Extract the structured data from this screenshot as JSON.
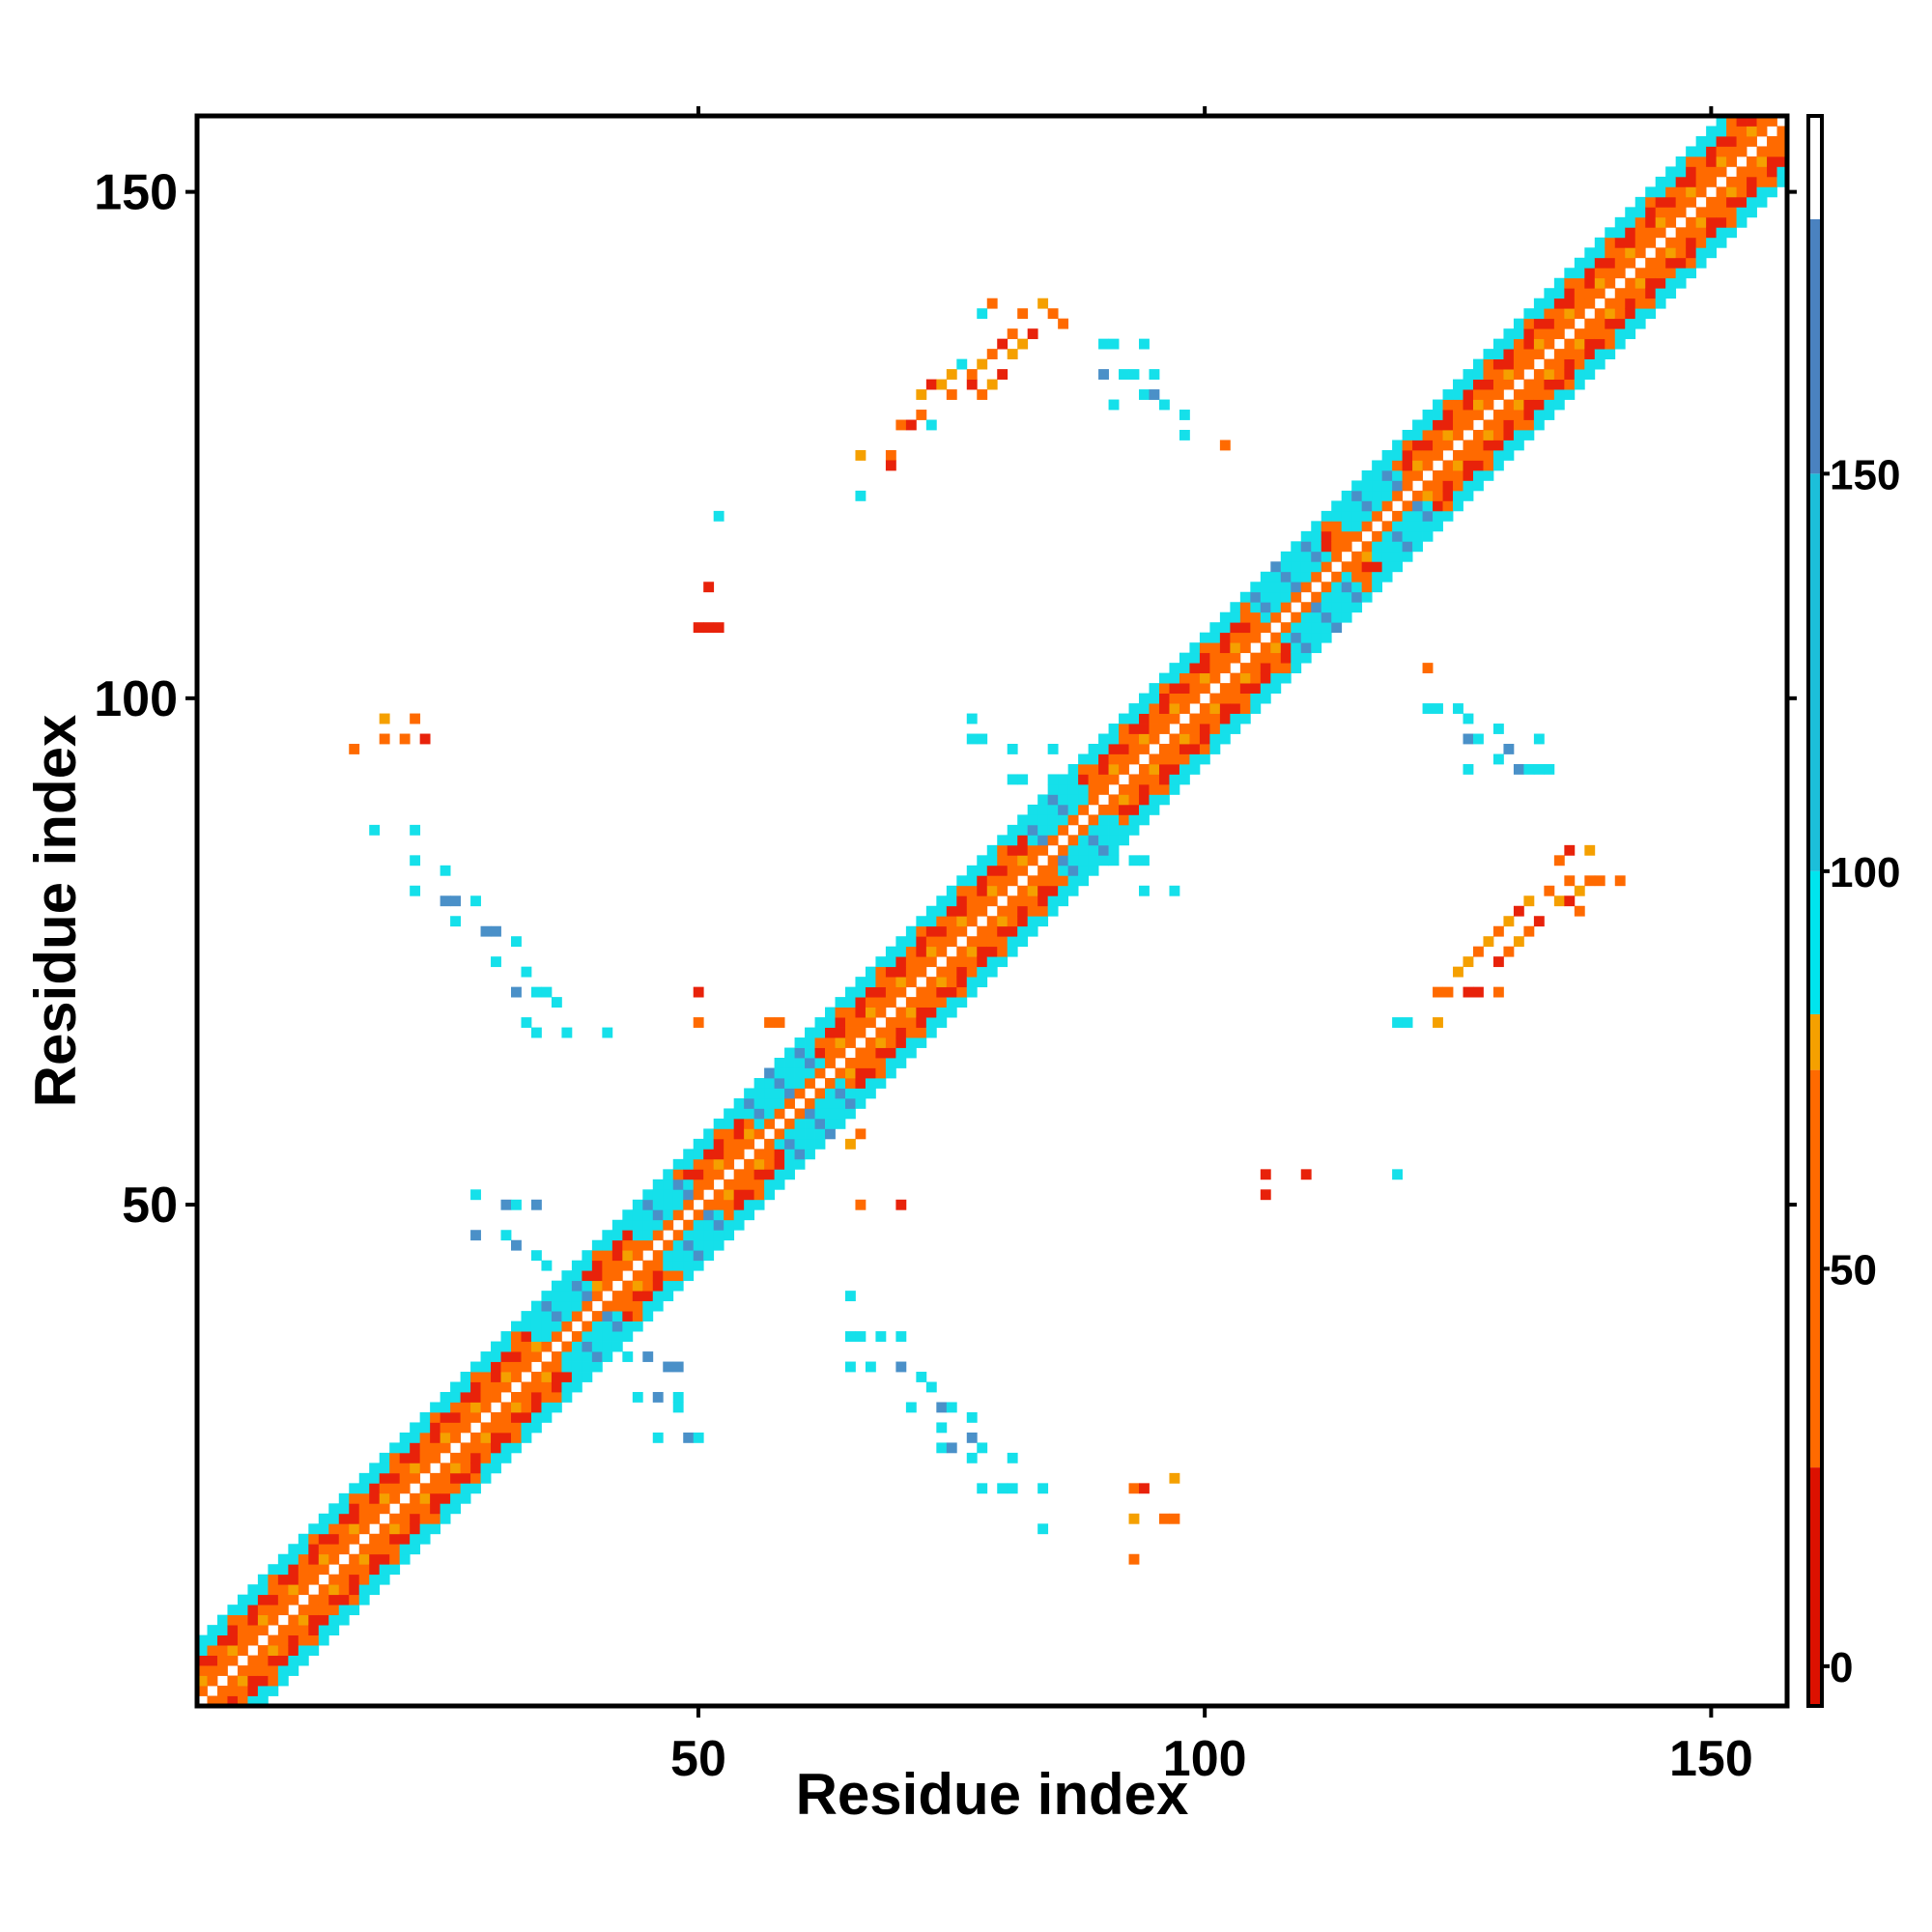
{
  "chart_data": {
    "type": "heatmap",
    "title": "",
    "xlabel": "Residue index",
    "ylabel": "Residue index",
    "xlim": [
      1,
      157
    ],
    "ylim": [
      1,
      157
    ],
    "xticks": [
      50,
      100,
      150
    ],
    "yticks": [
      50,
      100,
      150
    ],
    "grid": false,
    "colorbar": {
      "position": "right",
      "range": [
        -5,
        195
      ],
      "ticks": [
        0,
        50,
        100,
        150
      ],
      "bands": [
        {
          "from": -5,
          "to": 25,
          "color": "#dd1100"
        },
        {
          "from": 25,
          "to": 75,
          "color": "#ff6a00"
        },
        {
          "from": 75,
          "to": 82,
          "color": "#f5a000"
        },
        {
          "from": 82,
          "to": 100,
          "color": "#00e5ee"
        },
        {
          "from": 100,
          "to": 150,
          "color": "#1cbfda"
        },
        {
          "from": 150,
          "to": 182,
          "color": "#4a82c0"
        },
        {
          "from": 182,
          "to": 195,
          "color": "#ffffff"
        }
      ]
    },
    "colors": {
      "red": "#e8220a",
      "orange": "#ff6a00",
      "amber": "#f5a000",
      "cyan": "#15e0ea",
      "blue": "#4a90c8"
    },
    "diagonal_band_halfwidth": 6,
    "diagonal_blobs": [
      {
        "center": 38,
        "radius": 4,
        "color": "cyan"
      },
      {
        "center": 48,
        "radius": 4,
        "color": "cyan"
      },
      {
        "center": 60,
        "radius": 5,
        "color": "cyan"
      },
      {
        "center": 87,
        "radius": 4,
        "color": "cyan"
      },
      {
        "center": 110,
        "radius": 5,
        "color": "cyan"
      },
      {
        "center": 118,
        "radius": 4,
        "color": "cyan"
      }
    ],
    "contacts": [
      {
        "x": 16,
        "y": 95,
        "color": "orange"
      },
      {
        "x": 19,
        "y": 96,
        "color": "orange"
      },
      {
        "x": 19,
        "y": 98,
        "color": "amber"
      },
      {
        "x": 21,
        "y": 96,
        "color": "orange"
      },
      {
        "x": 22,
        "y": 98,
        "color": "orange"
      },
      {
        "x": 23,
        "y": 96,
        "color": "red"
      },
      {
        "x": 18,
        "y": 87,
        "color": "cyan"
      },
      {
        "x": 22,
        "y": 87,
        "color": "cyan"
      },
      {
        "x": 22,
        "y": 84,
        "color": "cyan"
      },
      {
        "x": 25,
        "y": 83,
        "color": "cyan"
      },
      {
        "x": 22,
        "y": 81,
        "color": "cyan"
      },
      {
        "x": 25,
        "y": 80,
        "color": "blue"
      },
      {
        "x": 26,
        "y": 80,
        "color": "blue"
      },
      {
        "x": 28,
        "y": 80,
        "color": "cyan"
      },
      {
        "x": 26,
        "y": 78,
        "color": "cyan"
      },
      {
        "x": 29,
        "y": 77,
        "color": "blue"
      },
      {
        "x": 30,
        "y": 77,
        "color": "blue"
      },
      {
        "x": 32,
        "y": 76,
        "color": "cyan"
      },
      {
        "x": 30,
        "y": 74,
        "color": "cyan"
      },
      {
        "x": 33,
        "y": 73,
        "color": "cyan"
      },
      {
        "x": 32,
        "y": 71,
        "color": "blue"
      },
      {
        "x": 34,
        "y": 71,
        "color": "cyan"
      },
      {
        "x": 35,
        "y": 71,
        "color": "cyan"
      },
      {
        "x": 36,
        "y": 70,
        "color": "cyan"
      },
      {
        "x": 33,
        "y": 68,
        "color": "cyan"
      },
      {
        "x": 34,
        "y": 67,
        "color": "cyan"
      },
      {
        "x": 37,
        "y": 67,
        "color": "cyan"
      },
      {
        "x": 41,
        "y": 67,
        "color": "cyan"
      },
      {
        "x": 28,
        "y": 51,
        "color": "cyan"
      },
      {
        "x": 31,
        "y": 50,
        "color": "blue"
      },
      {
        "x": 32,
        "y": 50,
        "color": "cyan"
      },
      {
        "x": 34,
        "y": 50,
        "color": "blue"
      },
      {
        "x": 28,
        "y": 47,
        "color": "blue"
      },
      {
        "x": 31,
        "y": 47,
        "color": "cyan"
      },
      {
        "x": 32,
        "y": 46,
        "color": "blue"
      },
      {
        "x": 34,
        "y": 45,
        "color": "cyan"
      },
      {
        "x": 35,
        "y": 44,
        "color": "cyan"
      },
      {
        "x": 52,
        "y": 118,
        "color": "cyan"
      },
      {
        "x": 51,
        "y": 111,
        "color": "red"
      },
      {
        "x": 50,
        "y": 107,
        "color": "red"
      },
      {
        "x": 51,
        "y": 107,
        "color": "red"
      },
      {
        "x": 52,
        "y": 107,
        "color": "red"
      },
      {
        "x": 50,
        "y": 71,
        "color": "red"
      },
      {
        "x": 50,
        "y": 68,
        "color": "orange"
      },
      {
        "x": 57,
        "y": 68,
        "color": "orange"
      },
      {
        "x": 58,
        "y": 68,
        "color": "orange"
      },
      {
        "x": 65,
        "y": 56,
        "color": "amber"
      },
      {
        "x": 66,
        "y": 57,
        "color": "orange"
      },
      {
        "x": 66,
        "y": 50,
        "color": "orange"
      },
      {
        "x": 70,
        "y": 50,
        "color": "red"
      },
      {
        "x": 65,
        "y": 41,
        "color": "cyan"
      },
      {
        "x": 65,
        "y": 37,
        "color": "cyan"
      },
      {
        "x": 66,
        "y": 37,
        "color": "cyan"
      },
      {
        "x": 68,
        "y": 37,
        "color": "cyan"
      },
      {
        "x": 70,
        "y": 37,
        "color": "cyan"
      },
      {
        "x": 65,
        "y": 34,
        "color": "cyan"
      },
      {
        "x": 67,
        "y": 34,
        "color": "cyan"
      },
      {
        "x": 70,
        "y": 34,
        "color": "blue"
      },
      {
        "x": 72,
        "y": 33,
        "color": "cyan"
      },
      {
        "x": 73,
        "y": 32,
        "color": "cyan"
      },
      {
        "x": 71,
        "y": 30,
        "color": "cyan"
      },
      {
        "x": 74,
        "y": 30,
        "color": "blue"
      },
      {
        "x": 75,
        "y": 30,
        "color": "cyan"
      },
      {
        "x": 77,
        "y": 29,
        "color": "cyan"
      },
      {
        "x": 74,
        "y": 28,
        "color": "cyan"
      },
      {
        "x": 77,
        "y": 27,
        "color": "blue"
      },
      {
        "x": 74,
        "y": 26,
        "color": "cyan"
      },
      {
        "x": 75,
        "y": 26,
        "color": "blue"
      },
      {
        "x": 78,
        "y": 26,
        "color": "cyan"
      },
      {
        "x": 77,
        "y": 25,
        "color": "cyan"
      },
      {
        "x": 81,
        "y": 25,
        "color": "cyan"
      },
      {
        "x": 78,
        "y": 22,
        "color": "cyan"
      },
      {
        "x": 80,
        "y": 22,
        "color": "cyan"
      },
      {
        "x": 81,
        "y": 22,
        "color": "cyan"
      },
      {
        "x": 84,
        "y": 22,
        "color": "cyan"
      },
      {
        "x": 84,
        "y": 18,
        "color": "cyan"
      },
      {
        "x": 43,
        "y": 35,
        "color": "cyan"
      },
      {
        "x": 45,
        "y": 35,
        "color": "blue"
      },
      {
        "x": 47,
        "y": 34,
        "color": "blue"
      },
      {
        "x": 48,
        "y": 34,
        "color": "blue"
      },
      {
        "x": 44,
        "y": 31,
        "color": "cyan"
      },
      {
        "x": 46,
        "y": 31,
        "color": "blue"
      },
      {
        "x": 48,
        "y": 31,
        "color": "cyan"
      },
      {
        "x": 48,
        "y": 30,
        "color": "cyan"
      },
      {
        "x": 46,
        "y": 27,
        "color": "cyan"
      },
      {
        "x": 49,
        "y": 27,
        "color": "blue"
      },
      {
        "x": 50,
        "y": 27,
        "color": "cyan"
      },
      {
        "x": 93,
        "y": 22,
        "color": "orange"
      },
      {
        "x": 94,
        "y": 22,
        "color": "red"
      },
      {
        "x": 97,
        "y": 23,
        "color": "amber"
      },
      {
        "x": 93,
        "y": 19,
        "color": "amber"
      },
      {
        "x": 96,
        "y": 19,
        "color": "orange"
      },
      {
        "x": 97,
        "y": 19,
        "color": "orange"
      },
      {
        "x": 93,
        "y": 15,
        "color": "orange"
      },
      {
        "x": 66,
        "y": 120,
        "color": "cyan"
      },
      {
        "x": 66,
        "y": 124,
        "color": "amber"
      },
      {
        "x": 69,
        "y": 124,
        "color": "orange"
      },
      {
        "x": 69,
        "y": 123,
        "color": "red"
      },
      {
        "x": 70,
        "y": 127,
        "color": "orange"
      },
      {
        "x": 71,
        "y": 127,
        "color": "red"
      },
      {
        "x": 72,
        "y": 128,
        "color": "orange"
      },
      {
        "x": 73,
        "y": 127,
        "color": "cyan"
      },
      {
        "x": 72,
        "y": 130,
        "color": "amber"
      },
      {
        "x": 73,
        "y": 131,
        "color": "red"
      },
      {
        "x": 74,
        "y": 131,
        "color": "amber"
      },
      {
        "x": 75,
        "y": 130,
        "color": "orange"
      },
      {
        "x": 75,
        "y": 132,
        "color": "amber"
      },
      {
        "x": 76,
        "y": 133,
        "color": "cyan"
      },
      {
        "x": 77,
        "y": 131,
        "color": "red"
      },
      {
        "x": 77,
        "y": 132,
        "color": "orange"
      },
      {
        "x": 78,
        "y": 130,
        "color": "orange"
      },
      {
        "x": 78,
        "y": 133,
        "color": "amber"
      },
      {
        "x": 79,
        "y": 134,
        "color": "orange"
      },
      {
        "x": 79,
        "y": 131,
        "color": "amber"
      },
      {
        "x": 80,
        "y": 135,
        "color": "red"
      },
      {
        "x": 80,
        "y": 132,
        "color": "red"
      },
      {
        "x": 81,
        "y": 136,
        "color": "orange"
      },
      {
        "x": 81,
        "y": 134,
        "color": "amber"
      },
      {
        "x": 82,
        "y": 138,
        "color": "orange"
      },
      {
        "x": 82,
        "y": 135,
        "color": "amber"
      },
      {
        "x": 83,
        "y": 136,
        "color": "red"
      },
      {
        "x": 84,
        "y": 139,
        "color": "amber"
      },
      {
        "x": 85,
        "y": 138,
        "color": "orange"
      },
      {
        "x": 86,
        "y": 137,
        "color": "orange"
      },
      {
        "x": 79,
        "y": 139,
        "color": "orange"
      },
      {
        "x": 78,
        "y": 138,
        "color": "cyan"
      },
      {
        "x": 90,
        "y": 135,
        "color": "cyan"
      },
      {
        "x": 91,
        "y": 135,
        "color": "cyan"
      },
      {
        "x": 94,
        "y": 135,
        "color": "cyan"
      },
      {
        "x": 90,
        "y": 132,
        "color": "blue"
      },
      {
        "x": 92,
        "y": 132,
        "color": "cyan"
      },
      {
        "x": 93,
        "y": 132,
        "color": "cyan"
      },
      {
        "x": 95,
        "y": 132,
        "color": "cyan"
      },
      {
        "x": 91,
        "y": 129,
        "color": "cyan"
      },
      {
        "x": 94,
        "y": 130,
        "color": "cyan"
      },
      {
        "x": 95,
        "y": 130,
        "color": "blue"
      },
      {
        "x": 96,
        "y": 129,
        "color": "cyan"
      },
      {
        "x": 98,
        "y": 128,
        "color": "cyan"
      },
      {
        "x": 98,
        "y": 126,
        "color": "cyan"
      },
      {
        "x": 102,
        "y": 125,
        "color": "orange"
      },
      {
        "x": 106,
        "y": 53,
        "color": "red"
      },
      {
        "x": 106,
        "y": 51,
        "color": "red"
      },
      {
        "x": 110,
        "y": 53,
        "color": "red"
      },
      {
        "x": 119,
        "y": 53,
        "color": "cyan"
      },
      {
        "x": 119,
        "y": 68,
        "color": "cyan"
      },
      {
        "x": 120,
        "y": 68,
        "color": "cyan"
      },
      {
        "x": 123,
        "y": 68,
        "color": "amber"
      },
      {
        "x": 123,
        "y": 71,
        "color": "orange"
      },
      {
        "x": 124,
        "y": 71,
        "color": "orange"
      },
      {
        "x": 126,
        "y": 71,
        "color": "red"
      },
      {
        "x": 127,
        "y": 71,
        "color": "red"
      },
      {
        "x": 129,
        "y": 71,
        "color": "orange"
      },
      {
        "x": 125,
        "y": 73,
        "color": "amber"
      },
      {
        "x": 126,
        "y": 74,
        "color": "amber"
      },
      {
        "x": 127,
        "y": 75,
        "color": "orange"
      },
      {
        "x": 128,
        "y": 76,
        "color": "amber"
      },
      {
        "x": 129,
        "y": 74,
        "color": "red"
      },
      {
        "x": 130,
        "y": 75,
        "color": "orange"
      },
      {
        "x": 129,
        "y": 77,
        "color": "orange"
      },
      {
        "x": 130,
        "y": 78,
        "color": "amber"
      },
      {
        "x": 131,
        "y": 76,
        "color": "amber"
      },
      {
        "x": 131,
        "y": 79,
        "color": "red"
      },
      {
        "x": 132,
        "y": 77,
        "color": "orange"
      },
      {
        "x": 132,
        "y": 80,
        "color": "amber"
      },
      {
        "x": 133,
        "y": 78,
        "color": "red"
      },
      {
        "x": 134,
        "y": 81,
        "color": "orange"
      },
      {
        "x": 135,
        "y": 80,
        "color": "amber"
      },
      {
        "x": 136,
        "y": 82,
        "color": "orange"
      },
      {
        "x": 137,
        "y": 81,
        "color": "amber"
      },
      {
        "x": 138,
        "y": 82,
        "color": "orange"
      },
      {
        "x": 139,
        "y": 82,
        "color": "orange"
      },
      {
        "x": 136,
        "y": 80,
        "color": "red"
      },
      {
        "x": 137,
        "y": 79,
        "color": "orange"
      },
      {
        "x": 135,
        "y": 84,
        "color": "orange"
      },
      {
        "x": 136,
        "y": 85,
        "color": "red"
      },
      {
        "x": 138,
        "y": 85,
        "color": "amber"
      },
      {
        "x": 141,
        "y": 82,
        "color": "orange"
      },
      {
        "x": 122,
        "y": 103,
        "color": "orange"
      },
      {
        "x": 122,
        "y": 99,
        "color": "cyan"
      },
      {
        "x": 123,
        "y": 99,
        "color": "cyan"
      },
      {
        "x": 125,
        "y": 99,
        "color": "cyan"
      },
      {
        "x": 126,
        "y": 98,
        "color": "cyan"
      },
      {
        "x": 126,
        "y": 96,
        "color": "blue"
      },
      {
        "x": 127,
        "y": 96,
        "color": "cyan"
      },
      {
        "x": 129,
        "y": 97,
        "color": "cyan"
      },
      {
        "x": 130,
        "y": 95,
        "color": "blue"
      },
      {
        "x": 129,
        "y": 94,
        "color": "cyan"
      },
      {
        "x": 126,
        "y": 93,
        "color": "cyan"
      },
      {
        "x": 131,
        "y": 93,
        "color": "blue"
      },
      {
        "x": 132,
        "y": 93,
        "color": "cyan"
      },
      {
        "x": 133,
        "y": 93,
        "color": "cyan"
      },
      {
        "x": 134,
        "y": 93,
        "color": "cyan"
      },
      {
        "x": 133,
        "y": 96,
        "color": "cyan"
      },
      {
        "x": 77,
        "y": 98,
        "color": "cyan"
      },
      {
        "x": 77,
        "y": 96,
        "color": "cyan"
      },
      {
        "x": 78,
        "y": 96,
        "color": "cyan"
      },
      {
        "x": 81,
        "y": 95,
        "color": "cyan"
      },
      {
        "x": 85,
        "y": 95,
        "color": "cyan"
      },
      {
        "x": 81,
        "y": 92,
        "color": "cyan"
      },
      {
        "x": 82,
        "y": 92,
        "color": "cyan"
      },
      {
        "x": 85,
        "y": 92,
        "color": "cyan"
      },
      {
        "x": 92,
        "y": 87,
        "color": "cyan"
      },
      {
        "x": 91,
        "y": 84,
        "color": "cyan"
      },
      {
        "x": 93,
        "y": 84,
        "color": "cyan"
      },
      {
        "x": 94,
        "y": 84,
        "color": "cyan"
      },
      {
        "x": 94,
        "y": 81,
        "color": "cyan"
      },
      {
        "x": 97,
        "y": 81,
        "color": "cyan"
      }
    ]
  }
}
